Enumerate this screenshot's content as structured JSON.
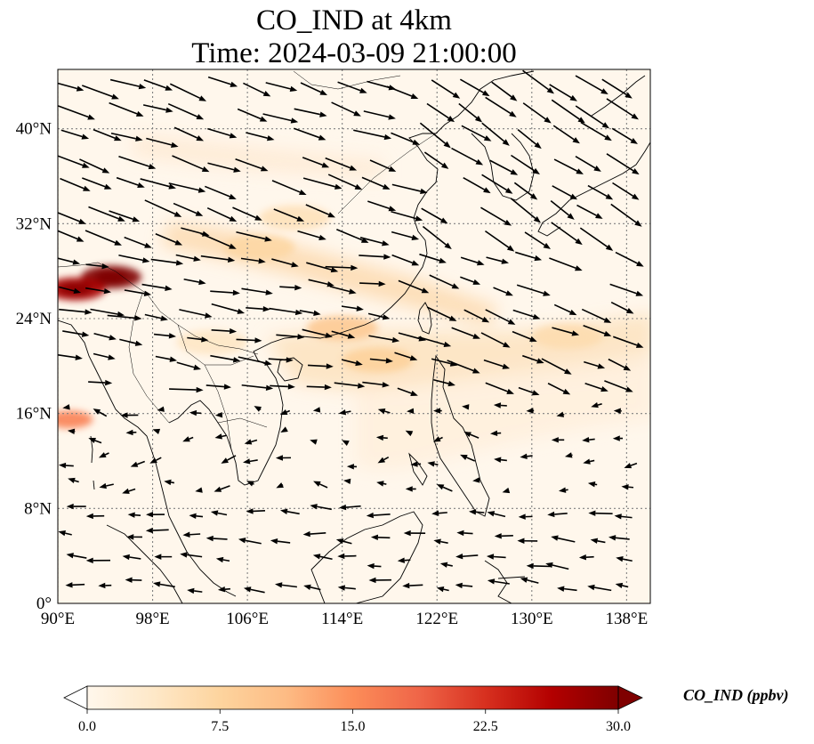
{
  "title": {
    "line1": "CO_IND at 4km",
    "line2": "Time: 2024-03-09 21:00:00"
  },
  "map": {
    "lon_range": [
      90,
      140
    ],
    "lat_range": [
      0,
      45
    ],
    "projection": "PlateCarree",
    "gridlines": "dotted",
    "coastlines": true,
    "country_borders": true,
    "lon_ticks": [
      {
        "value": 90,
        "label": "90°E"
      },
      {
        "value": 98,
        "label": "98°E"
      },
      {
        "value": 106,
        "label": "106°E"
      },
      {
        "value": 114,
        "label": "114°E"
      },
      {
        "value": 122,
        "label": "122°E"
      },
      {
        "value": 130,
        "label": "130°E"
      },
      {
        "value": 138,
        "label": "138°E"
      }
    ],
    "lat_ticks": [
      {
        "value": 40,
        "label": "40°N"
      },
      {
        "value": 32,
        "label": "32°N"
      },
      {
        "value": 24,
        "label": "24°N"
      },
      {
        "value": 16,
        "label": "16°N"
      },
      {
        "value": 8,
        "label": "8°N"
      },
      {
        "value": 0,
        "label": "0°"
      }
    ]
  },
  "chart_data": {
    "type": "heatmap",
    "variable": "CO_IND",
    "units": "ppbv",
    "colormap": "OrRd",
    "vmin": 0.0,
    "vmax": 30.0,
    "extend": "both",
    "plumes": [
      {
        "lon": 94.5,
        "lat": 27.5,
        "value": 30.0
      },
      {
        "lon": 91.5,
        "lat": 26.5,
        "value": 27.0
      },
      {
        "lon": 91.0,
        "lat": 15.5,
        "value": 16.0
      },
      {
        "lon": 114.0,
        "lat": 23.2,
        "value": 9.0
      },
      {
        "lon": 117.0,
        "lat": 20.5,
        "value": 8.0
      },
      {
        "lon": 107.0,
        "lat": 30.0,
        "value": 7.0
      },
      {
        "lon": 133.0,
        "lat": 22.5,
        "value": 6.0
      },
      {
        "lon": 110.0,
        "lat": 32.5,
        "value": 5.0
      },
      {
        "lon": 103.0,
        "lat": 22.0,
        "value": 4.0
      }
    ],
    "wind": "quiver vectors (westerly flow, stronger in the north)"
  },
  "colorbar": {
    "label": "CO_IND (ppbv)",
    "ticks": [
      "0.0",
      "7.5",
      "15.0",
      "22.5",
      "30.0"
    ],
    "stops": [
      "#fff7ec",
      "#fee8c8",
      "#fdd49e",
      "#fdbb84",
      "#fc8d59",
      "#ef6548",
      "#d7301f",
      "#b30000",
      "#7f0000"
    ],
    "under_color": "#ffffff",
    "over_color": "#7f0000"
  }
}
